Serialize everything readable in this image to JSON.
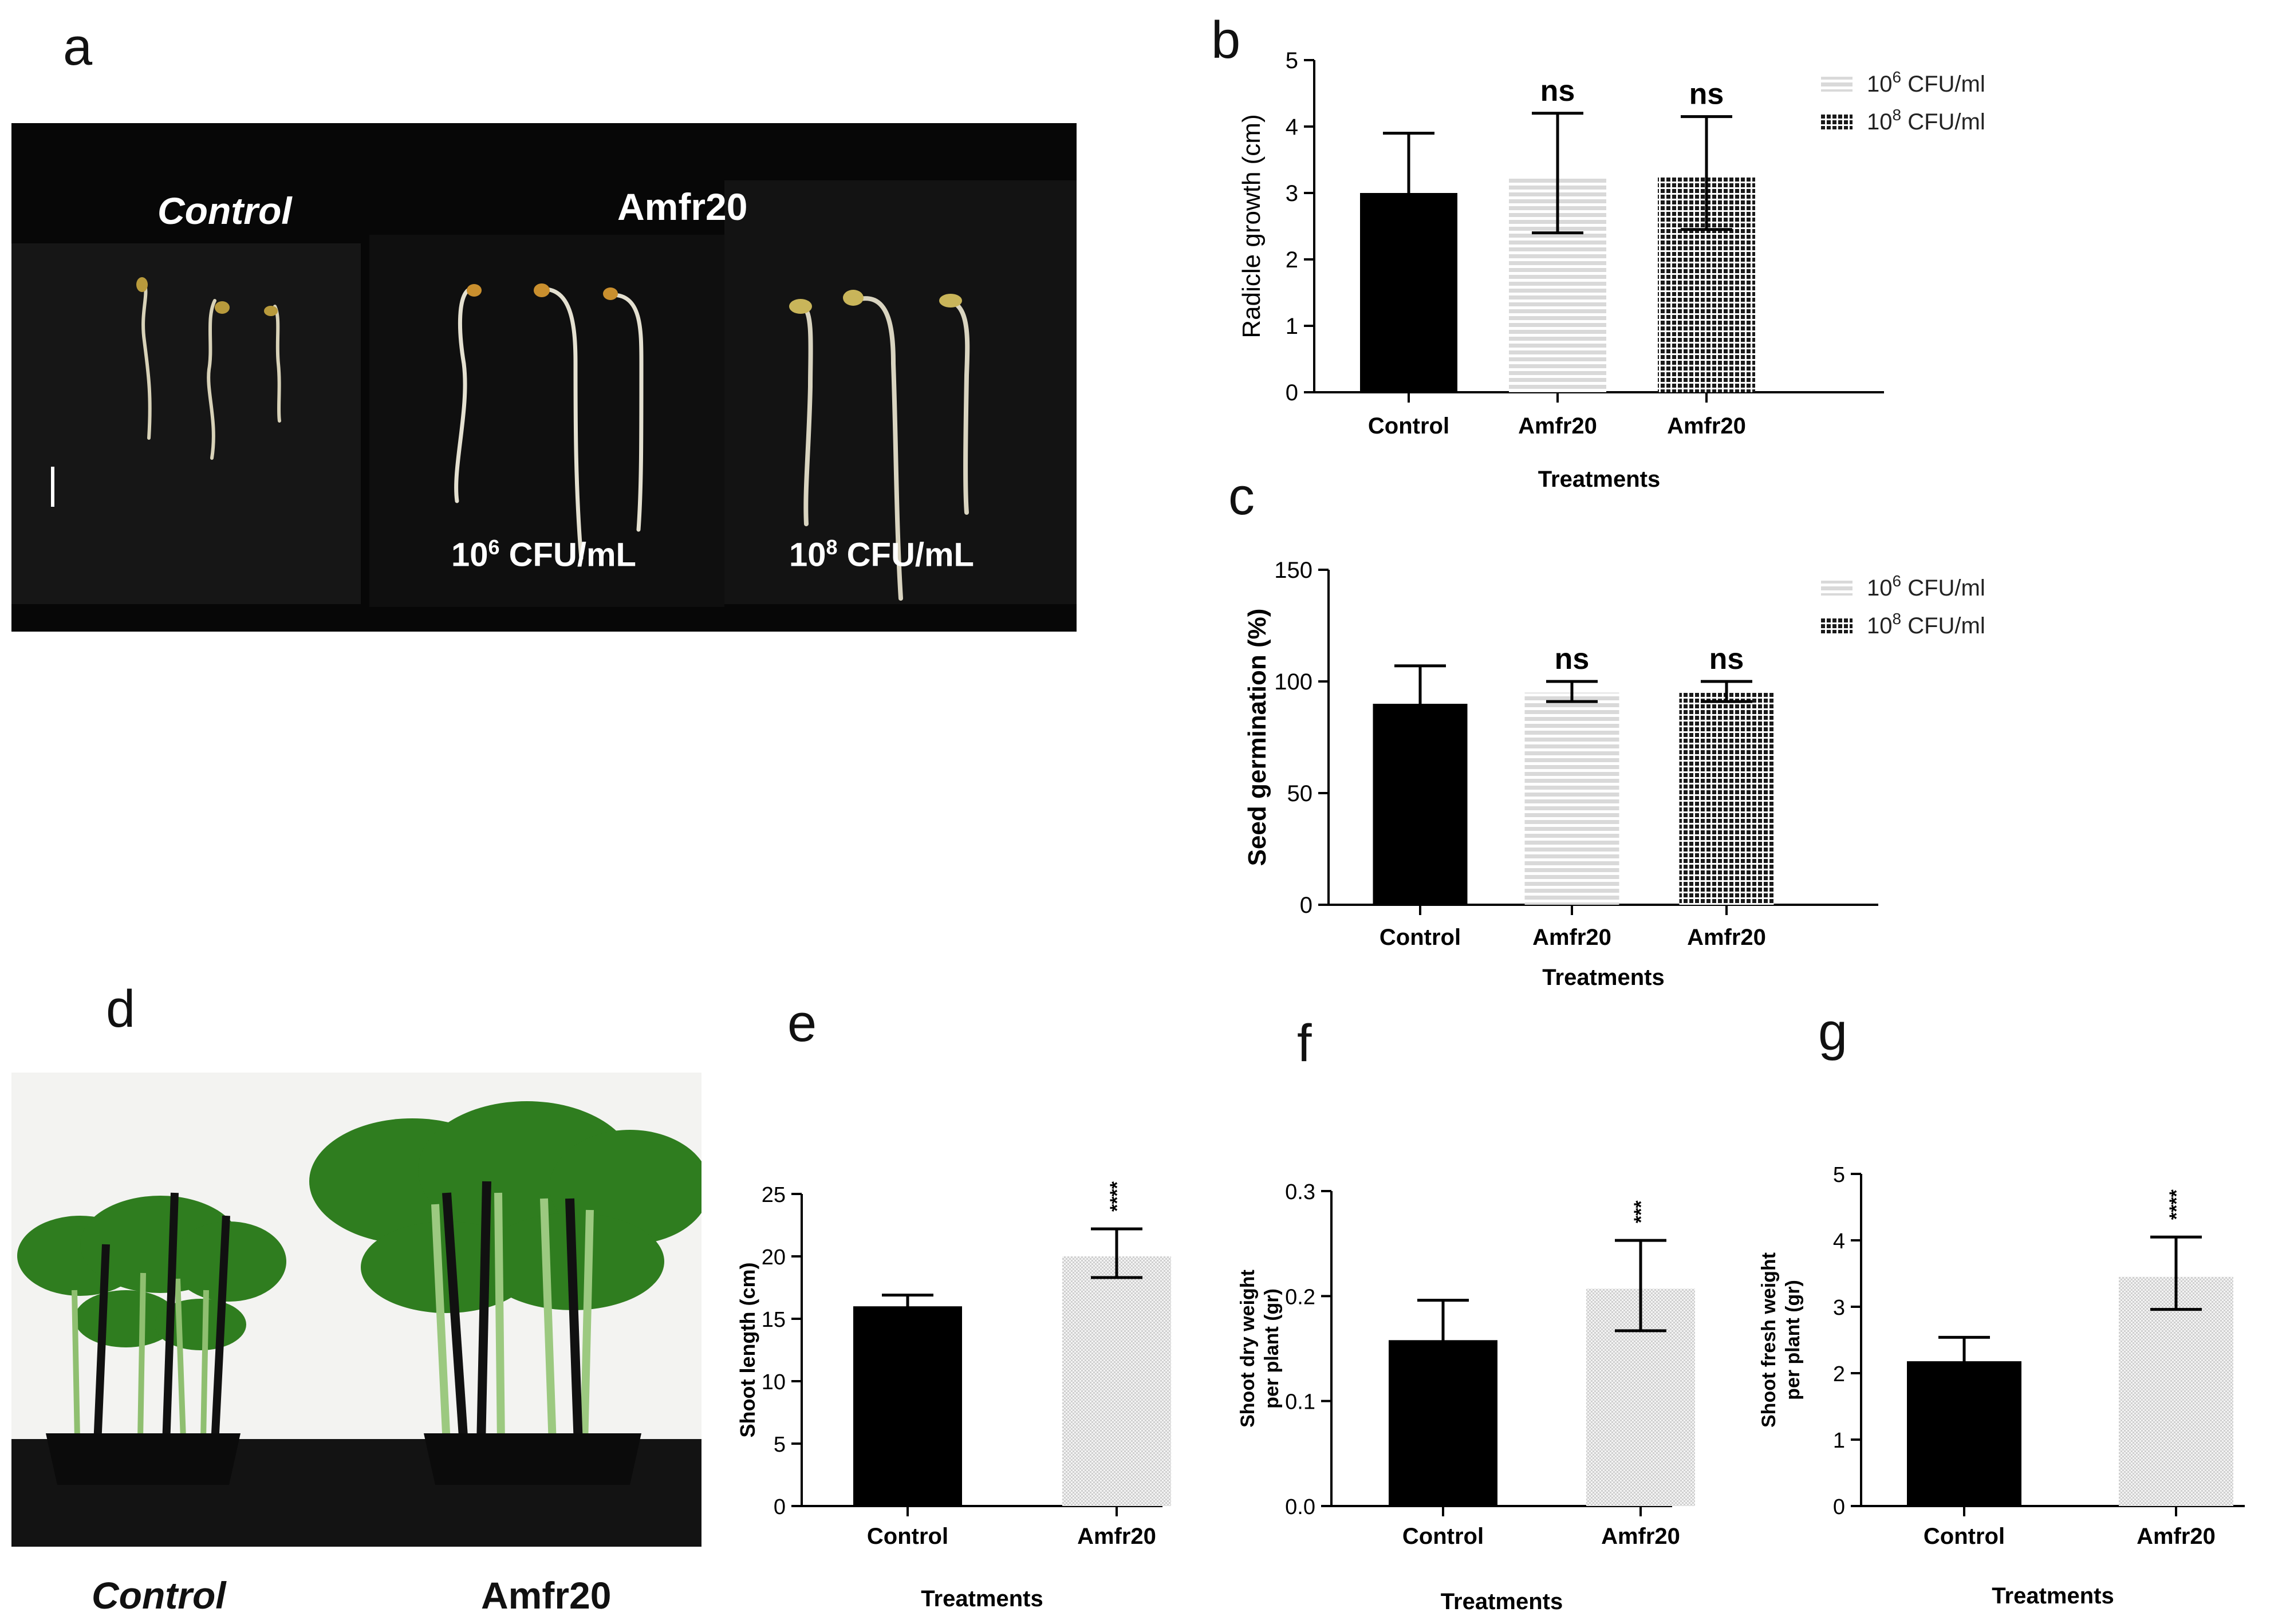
{
  "panels": {
    "a": "a",
    "b": "b",
    "c": "c",
    "d": "d",
    "e": "e",
    "f": "f",
    "g": "g"
  },
  "photo_a": {
    "labels": {
      "control": "Control",
      "strain": "Amfr20",
      "dose_low": "10",
      "dose_low_exp": "6",
      "dose_high": "10",
      "dose_high_exp": "8",
      "unit": " CFU/mL"
    }
  },
  "photo_d": {
    "labels": {
      "control": "Control",
      "strain": "Amfr20"
    }
  },
  "colors": {
    "control": "#000000",
    "low_dose_fill": "#d9d9d9",
    "high_dose_fill": "#1a1a1a",
    "pale_dot": "#cfcfcf"
  },
  "chart_data": [
    {
      "id": "b",
      "type": "bar",
      "categories": [
        "Control",
        "Amfr20",
        "Amfr20"
      ],
      "values": [
        3.0,
        3.25,
        3.25
      ],
      "errors": [
        [
          2.1,
          3.9
        ],
        [
          2.4,
          4.2
        ],
        [
          2.45,
          4.15
        ]
      ],
      "significance": [
        "",
        "ns",
        "ns"
      ],
      "fills": [
        "solid",
        "hstripe",
        "dots"
      ],
      "ylabel": "Radicle growth (cm)",
      "xlabel": "Treatments",
      "ylim": [
        0,
        5
      ],
      "yticks": [
        "0",
        "1",
        "2",
        "3",
        "4",
        "5"
      ],
      "legend": [
        {
          "base": "10",
          "exp": "6",
          "unit": " CFU/ml",
          "fill": "hstripe"
        },
        {
          "base": "10",
          "exp": "8",
          "unit": " CFU/ml",
          "fill": "dots"
        }
      ],
      "legend_position": "right"
    },
    {
      "id": "c",
      "type": "bar",
      "categories": [
        "Control",
        "Amfr20",
        "Amfr20"
      ],
      "values": [
        90,
        95,
        95
      ],
      "errors": [
        [
          73,
          107
        ],
        [
          91,
          100
        ],
        [
          91,
          100
        ]
      ],
      "significance": [
        "",
        "ns",
        "ns"
      ],
      "fills": [
        "solid",
        "hstripe",
        "dots"
      ],
      "ylabel": "Seed germination (%)",
      "xlabel": "Treatments",
      "ylim": [
        0,
        150
      ],
      "yticks": [
        "0",
        "50",
        "100",
        "150"
      ],
      "legend": [
        {
          "base": "10",
          "exp": "6",
          "unit": " CFU/ml",
          "fill": "hstripe"
        },
        {
          "base": "10",
          "exp": "8",
          "unit": " CFU/ml",
          "fill": "dots"
        }
      ],
      "legend_position": "right"
    },
    {
      "id": "e",
      "type": "bar",
      "categories": [
        "Control",
        "Amfr20"
      ],
      "values": [
        16.0,
        20.0
      ],
      "errors": [
        [
          15.1,
          16.9
        ],
        [
          18.3,
          22.2
        ]
      ],
      "significance": [
        "",
        "****"
      ],
      "fills": [
        "solid",
        "paledots"
      ],
      "ylabel": "Shoot length (cm)",
      "xlabel": "Treatments",
      "ylim": [
        0,
        25
      ],
      "yticks": [
        "0",
        "5",
        "10",
        "15",
        "20",
        "25"
      ]
    },
    {
      "id": "f",
      "type": "bar",
      "categories": [
        "Control",
        "Amfr20"
      ],
      "values": [
        0.158,
        0.207
      ],
      "errors": [
        [
          0.12,
          0.196
        ],
        [
          0.167,
          0.253
        ]
      ],
      "significance": [
        "",
        "***"
      ],
      "fills": [
        "solid",
        "paledots"
      ],
      "ylabel": [
        "Shoot dry weight",
        "per plant (gr)"
      ],
      "xlabel": "Treatments",
      "ylim": [
        0,
        0.3
      ],
      "yticks": [
        "0.0",
        "0.1",
        "0.2",
        "0.3"
      ]
    },
    {
      "id": "g",
      "type": "bar",
      "categories": [
        "Control",
        "Amfr20"
      ],
      "values": [
        2.18,
        3.45
      ],
      "errors": [
        [
          1.82,
          2.54
        ],
        [
          2.96,
          4.05
        ]
      ],
      "significance": [
        "",
        "****"
      ],
      "fills": [
        "solid",
        "paledots"
      ],
      "ylabel": [
        "Shoot fresh weight",
        "per plant (gr)"
      ],
      "xlabel": "Treatments",
      "ylim": [
        0,
        5
      ],
      "yticks": [
        "0",
        "1",
        "2",
        "3",
        "4",
        "5"
      ]
    }
  ]
}
